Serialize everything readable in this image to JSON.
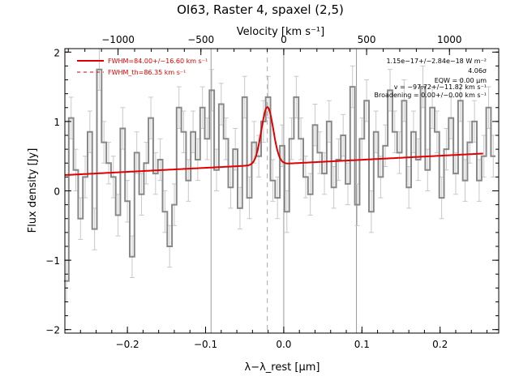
{
  "chart_data": {
    "type": "line",
    "title": "OI63, Raster 4, spaxel (2,5)",
    "xlabel": "λ−λ_rest [μm]",
    "ylabel": "Flux density [Jy]",
    "top_axis_label": "Velocity [km s⁻¹]",
    "xlim": [
      -0.28,
      0.275
    ],
    "ylim": [
      -2.05,
      2.05
    ],
    "top_axis_offset_um": 0.0,
    "x_ticks": [
      -0.2,
      -0.1,
      0.0,
      0.1,
      0.2
    ],
    "x_tick_labels": [
      "−0.2",
      "−0.1",
      "0.0",
      "0.1",
      "0.2"
    ],
    "y_ticks": [
      -2,
      -1,
      0,
      1,
      2
    ],
    "y_tick_labels": [
      "−2",
      "−1",
      "0",
      "1",
      "2"
    ],
    "top_ticks_kms": [
      -1000,
      -500,
      0,
      500,
      1000
    ],
    "top_tick_labels": [
      "−1000",
      "−500",
      "0",
      "500",
      "1000"
    ],
    "um_per_kms": 0.000212,
    "vertical_lines_um": [
      -0.093,
      0.0,
      0.093
    ],
    "dashed_line_um": -0.021,
    "legend": {
      "position": "top-left",
      "entries": [
        {
          "label": "FWHM=84.00+/−16.60 km s⁻¹",
          "style": "solid",
          "color": "#e00000"
        },
        {
          "label": "FWHM_th=86.35 km s⁻¹",
          "style": "dashed",
          "color": "#e00000"
        }
      ]
    },
    "annotations": [
      "1.15e−17+/−2.84e−18 W m⁻²",
      "4.06σ",
      "EQW = 0.00 μm",
      "v = −97.72+/−11.82 km s⁻¹",
      "Broadening = 0.00+/−0.00 km s⁻¹"
    ],
    "spectrum": {
      "name": "data",
      "color": "#888888",
      "x": [
        -0.278,
        -0.272,
        -0.266,
        -0.26,
        -0.254,
        -0.248,
        -0.242,
        -0.236,
        -0.23,
        -0.224,
        -0.218,
        -0.212,
        -0.206,
        -0.2,
        -0.194,
        -0.188,
        -0.182,
        -0.176,
        -0.17,
        -0.164,
        -0.158,
        -0.152,
        -0.146,
        -0.14,
        -0.134,
        -0.128,
        -0.122,
        -0.116,
        -0.11,
        -0.104,
        -0.098,
        -0.092,
        -0.086,
        -0.08,
        -0.074,
        -0.068,
        -0.062,
        -0.056,
        -0.05,
        -0.044,
        -0.038,
        -0.032,
        -0.026,
        -0.02,
        -0.014,
        -0.008,
        -0.002,
        0.004,
        0.01,
        0.016,
        0.022,
        0.028,
        0.034,
        0.04,
        0.046,
        0.052,
        0.058,
        0.064,
        0.07,
        0.076,
        0.082,
        0.088,
        0.094,
        0.1,
        0.106,
        0.112,
        0.118,
        0.124,
        0.13,
        0.136,
        0.142,
        0.148,
        0.154,
        0.16,
        0.166,
        0.172,
        0.178,
        0.184,
        0.19,
        0.196,
        0.202,
        0.208,
        0.214,
        0.22,
        0.226,
        0.232,
        0.238,
        0.244,
        0.25,
        0.256,
        0.262,
        0.268
      ],
      "y": [
        -1.3,
        1.05,
        0.3,
        -0.4,
        0.2,
        0.85,
        -0.55,
        1.75,
        0.7,
        0.4,
        0.2,
        -0.35,
        0.9,
        -0.15,
        -0.95,
        0.55,
        -0.05,
        0.4,
        1.05,
        0.25,
        0.45,
        -0.3,
        -0.8,
        -0.2,
        1.2,
        0.85,
        0.15,
        0.85,
        0.45,
        1.2,
        0.75,
        1.45,
        0.3,
        1.25,
        0.75,
        0.05,
        0.6,
        -0.25,
        1.35,
        -0.1,
        0.7,
        0.5,
        1.0,
        1.35,
        0.15,
        -0.1,
        0.65,
        -0.3,
        0.75,
        1.35,
        0.75,
        0.2,
        -0.05,
        0.95,
        0.55,
        0.25,
        1.0,
        0.05,
        0.45,
        0.8,
        0.1,
        1.5,
        -0.2,
        0.75,
        1.3,
        -0.3,
        0.85,
        0.2,
        0.65,
        1.45,
        0.85,
        0.55,
        1.3,
        0.05,
        0.85,
        0.45,
        1.5,
        0.3,
        1.2,
        0.85,
        -0.1,
        0.6,
        1.05,
        0.25,
        1.3,
        0.15,
        0.7,
        1.0,
        0.15,
        0.5,
        1.2,
        0.5
      ],
      "error": 0.3
    },
    "fit": {
      "name": "model",
      "color": "#e00000",
      "continuum_intercept": 0.39,
      "continuum_slope": 0.58,
      "gaussian_center_um": -0.021,
      "gaussian_amplitude": 0.83,
      "gaussian_sigma_um": 0.0076,
      "x_range": [
        -0.28,
        0.255
      ]
    }
  }
}
